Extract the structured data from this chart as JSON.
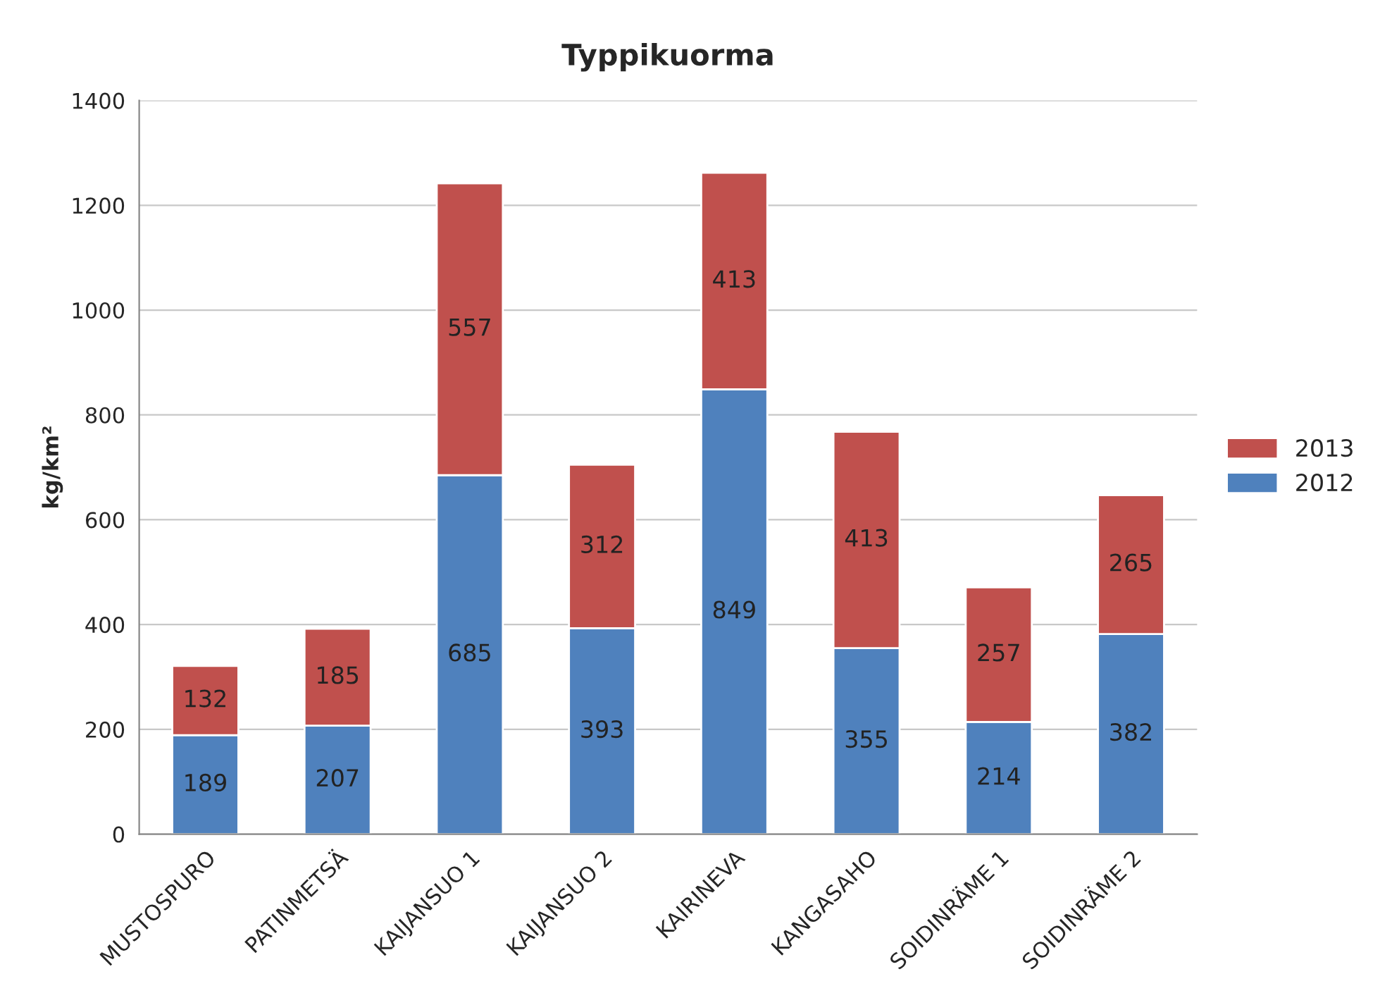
{
  "chart_data": {
    "type": "bar",
    "title": "Typpikuorma",
    "ylabel": "kg/km²",
    "categories": [
      "MUSTOSPURO",
      "PATINMETSÄ",
      "KAIJANSUO 1",
      "KAIJANSUO 2",
      "KAIRINEVA",
      "KANGASAHO",
      "SOIDINRÄME 1",
      "SOIDINRÄME 2"
    ],
    "series": [
      {
        "name": "2012",
        "color": "#4f81bd",
        "values": [
          189,
          207,
          685,
          393,
          849,
          355,
          214,
          382
        ]
      },
      {
        "name": "2013",
        "color": "#c0504d",
        "values": [
          132,
          185,
          557,
          312,
          413,
          413,
          257,
          265
        ]
      }
    ],
    "stacked": true,
    "data_labels": true,
    "ylim": [
      0,
      1400
    ],
    "yticks": [
      0,
      200,
      400,
      600,
      800,
      1000,
      1200,
      1400
    ],
    "grid": "y",
    "legend": "right"
  }
}
